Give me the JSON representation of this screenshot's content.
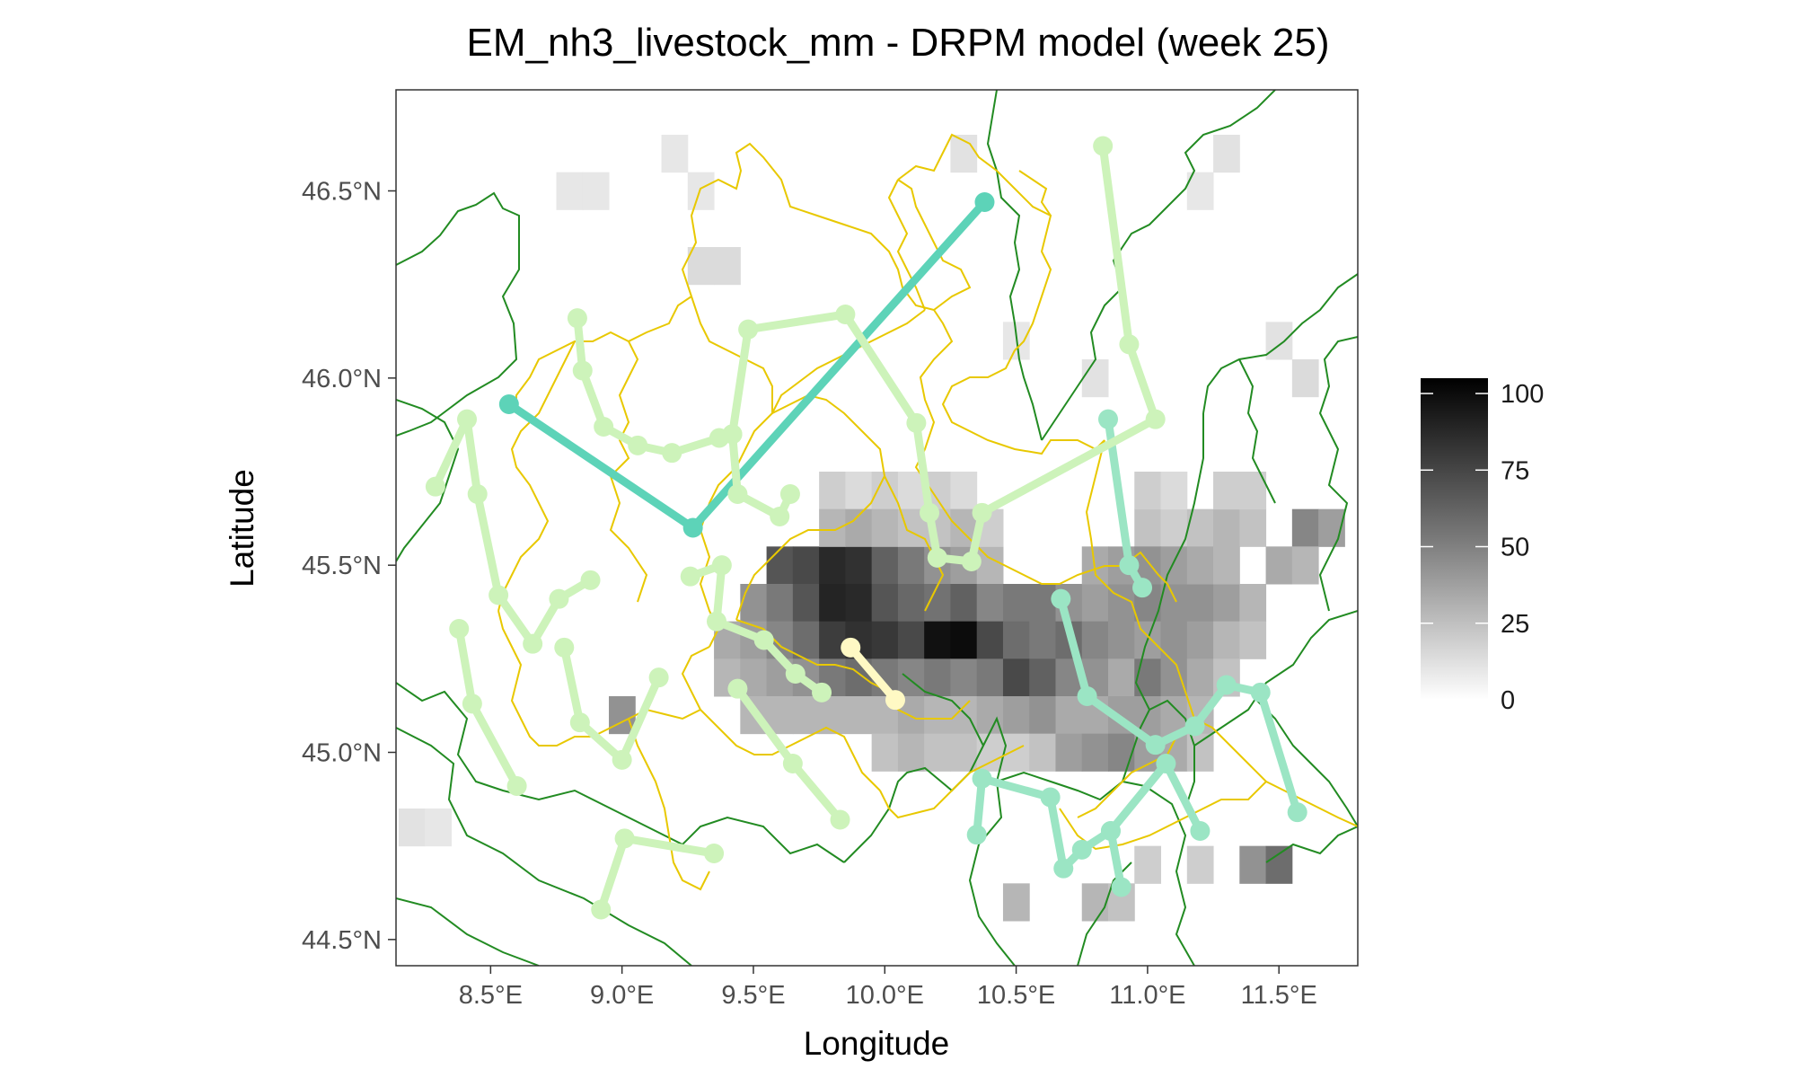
{
  "chart_data": {
    "type": "heatmap",
    "title": "EM_nh3_livestock_mm - DRPM model (week 25)",
    "xlabel": "Longitude",
    "ylabel": "Latitude",
    "xlim": [
      8.14,
      11.8
    ],
    "ylim": [
      44.43,
      46.77
    ],
    "x_ticks": [
      {
        "value": 8.5,
        "label": "8.5°E"
      },
      {
        "value": 9.0,
        "label": "9.0°E"
      },
      {
        "value": 9.5,
        "label": "9.5°E"
      },
      {
        "value": 10.0,
        "label": "10.0°E"
      },
      {
        "value": 10.5,
        "label": "10.5°E"
      },
      {
        "value": 11.0,
        "label": "11.0°E"
      },
      {
        "value": 11.5,
        "label": "11.5°E"
      }
    ],
    "y_ticks": [
      {
        "value": 44.5,
        "label": "44.5°N"
      },
      {
        "value": 45.0,
        "label": "45.0°N"
      },
      {
        "value": 45.5,
        "label": "45.5°N"
      },
      {
        "value": 46.0,
        "label": "46.0°N"
      },
      {
        "value": 46.5,
        "label": "46.5°N"
      }
    ],
    "colorbar": {
      "min": 0,
      "max": 105,
      "low_color": "#ffffff",
      "high_color": "#000000",
      "ticks": [
        {
          "value": 0,
          "label": "0"
        },
        {
          "value": 25,
          "label": "25"
        },
        {
          "value": 50,
          "label": "50"
        },
        {
          "value": 75,
          "label": "75"
        },
        {
          "value": 100,
          "label": "100"
        }
      ]
    },
    "grid": false,
    "legend_position": "right",
    "grid_cell": {
      "dlon": 0.1,
      "dlat": 0.1
    },
    "grid_cells": [
      [
        9.6,
        45.5,
        70
      ],
      [
        9.7,
        45.5,
        75
      ],
      [
        9.8,
        45.5,
        88
      ],
      [
        9.9,
        45.5,
        85
      ],
      [
        10.0,
        45.5,
        65
      ],
      [
        10.1,
        45.5,
        55
      ],
      [
        10.2,
        45.5,
        45
      ],
      [
        10.3,
        45.5,
        40
      ],
      [
        10.4,
        45.5,
        30
      ],
      [
        9.5,
        45.4,
        45
      ],
      [
        9.6,
        45.4,
        55
      ],
      [
        9.7,
        45.4,
        70
      ],
      [
        9.8,
        45.4,
        90
      ],
      [
        9.9,
        45.4,
        88
      ],
      [
        10.0,
        45.4,
        70
      ],
      [
        10.1,
        45.4,
        62
      ],
      [
        10.2,
        45.4,
        58
      ],
      [
        10.3,
        45.4,
        65
      ],
      [
        10.4,
        45.4,
        50
      ],
      [
        10.5,
        45.4,
        55
      ],
      [
        10.6,
        45.4,
        55
      ],
      [
        10.7,
        45.4,
        45
      ],
      [
        10.8,
        45.4,
        40
      ],
      [
        10.9,
        45.4,
        45
      ],
      [
        11.0,
        45.4,
        50
      ],
      [
        11.1,
        45.4,
        45
      ],
      [
        11.2,
        45.4,
        45
      ],
      [
        11.3,
        45.4,
        40
      ],
      [
        11.4,
        45.4,
        30
      ],
      [
        9.4,
        45.3,
        35
      ],
      [
        9.5,
        45.3,
        40
      ],
      [
        9.6,
        45.3,
        50
      ],
      [
        9.7,
        45.3,
        60
      ],
      [
        9.8,
        45.3,
        80
      ],
      [
        9.9,
        45.3,
        85
      ],
      [
        10.0,
        45.3,
        82
      ],
      [
        10.1,
        45.3,
        75
      ],
      [
        10.2,
        45.3,
        98
      ],
      [
        10.3,
        45.3,
        100
      ],
      [
        10.4,
        45.3,
        75
      ],
      [
        10.5,
        45.3,
        60
      ],
      [
        10.6,
        45.3,
        55
      ],
      [
        10.7,
        45.3,
        60
      ],
      [
        10.8,
        45.3,
        50
      ],
      [
        10.9,
        45.3,
        45
      ],
      [
        11.0,
        45.3,
        40
      ],
      [
        11.1,
        45.3,
        45
      ],
      [
        11.2,
        45.3,
        40
      ],
      [
        11.3,
        45.3,
        30
      ],
      [
        11.4,
        45.3,
        25
      ],
      [
        9.4,
        45.2,
        30
      ],
      [
        9.5,
        45.2,
        35
      ],
      [
        9.6,
        45.2,
        40
      ],
      [
        9.7,
        45.2,
        45
      ],
      [
        9.8,
        45.2,
        55
      ],
      [
        9.9,
        45.2,
        60
      ],
      [
        10.0,
        45.2,
        55
      ],
      [
        10.1,
        45.2,
        50
      ],
      [
        10.2,
        45.2,
        55
      ],
      [
        10.3,
        45.2,
        50
      ],
      [
        10.4,
        45.2,
        55
      ],
      [
        10.5,
        45.2,
        75
      ],
      [
        10.6,
        45.2,
        65
      ],
      [
        10.7,
        45.2,
        50
      ],
      [
        10.8,
        45.2,
        45
      ],
      [
        10.9,
        45.2,
        35
      ],
      [
        11.0,
        45.2,
        55
      ],
      [
        11.1,
        45.2,
        45
      ],
      [
        11.2,
        45.2,
        35
      ],
      [
        11.3,
        45.2,
        25
      ],
      [
        9.0,
        45.1,
        45
      ],
      [
        9.5,
        45.1,
        30
      ],
      [
        9.6,
        45.1,
        30
      ],
      [
        9.7,
        45.1,
        30
      ],
      [
        9.8,
        45.1,
        30
      ],
      [
        9.9,
        45.1,
        30
      ],
      [
        10.0,
        45.1,
        30
      ],
      [
        10.1,
        45.1,
        35
      ],
      [
        10.2,
        45.1,
        30
      ],
      [
        10.3,
        45.1,
        30
      ],
      [
        10.4,
        45.1,
        35
      ],
      [
        10.5,
        45.1,
        40
      ],
      [
        10.6,
        45.1,
        45
      ],
      [
        10.7,
        45.1,
        35
      ],
      [
        10.8,
        45.1,
        35
      ],
      [
        10.9,
        45.1,
        40
      ],
      [
        11.0,
        45.1,
        40
      ],
      [
        11.1,
        45.1,
        35
      ],
      [
        11.2,
        45.1,
        30
      ],
      [
        10.0,
        45.0,
        25
      ],
      [
        10.1,
        45.0,
        30
      ],
      [
        10.2,
        45.0,
        25
      ],
      [
        10.3,
        45.0,
        25
      ],
      [
        10.4,
        45.0,
        20
      ],
      [
        10.5,
        45.0,
        20
      ],
      [
        10.6,
        45.0,
        25
      ],
      [
        10.7,
        45.0,
        40
      ],
      [
        10.8,
        45.0,
        45
      ],
      [
        10.9,
        45.0,
        50
      ],
      [
        11.0,
        45.0,
        40
      ],
      [
        11.1,
        45.0,
        35
      ],
      [
        11.2,
        45.0,
        25
      ],
      [
        9.8,
        45.7,
        20
      ],
      [
        9.9,
        45.7,
        15
      ],
      [
        10.0,
        45.7,
        20
      ],
      [
        10.1,
        45.7,
        15
      ],
      [
        10.2,
        45.7,
        20
      ],
      [
        10.3,
        45.7,
        15
      ],
      [
        9.8,
        45.6,
        30
      ],
      [
        9.9,
        45.6,
        35
      ],
      [
        10.0,
        45.6,
        30
      ],
      [
        10.1,
        45.6,
        25
      ],
      [
        10.2,
        45.6,
        25
      ],
      [
        10.3,
        45.6,
        30
      ],
      [
        10.4,
        45.6,
        20
      ],
      [
        11.0,
        45.6,
        25
      ],
      [
        11.1,
        45.6,
        20
      ],
      [
        11.2,
        45.6,
        25
      ],
      [
        11.3,
        45.6,
        30
      ],
      [
        11.4,
        45.6,
        25
      ],
      [
        11.6,
        45.6,
        50
      ],
      [
        11.7,
        45.6,
        40
      ],
      [
        10.8,
        45.5,
        35
      ],
      [
        10.9,
        45.5,
        40
      ],
      [
        11.0,
        45.5,
        45
      ],
      [
        11.1,
        45.5,
        40
      ],
      [
        11.2,
        45.5,
        35
      ],
      [
        11.3,
        45.5,
        30
      ],
      [
        11.5,
        45.5,
        35
      ],
      [
        11.6,
        45.5,
        30
      ],
      [
        11.0,
        45.7,
        20
      ],
      [
        11.1,
        45.7,
        15
      ],
      [
        11.3,
        45.7,
        20
      ],
      [
        11.4,
        45.7,
        20
      ],
      [
        10.5,
        44.6,
        30
      ],
      [
        10.8,
        44.6,
        30
      ],
      [
        10.9,
        44.6,
        25
      ],
      [
        11.4,
        44.7,
        45
      ],
      [
        11.5,
        44.7,
        60
      ],
      [
        11.0,
        44.7,
        20
      ],
      [
        11.2,
        44.7,
        20
      ],
      [
        9.3,
        46.3,
        15
      ],
      [
        9.4,
        46.3,
        15
      ],
      [
        9.2,
        46.6,
        10
      ],
      [
        9.3,
        46.5,
        10
      ],
      [
        8.8,
        46.5,
        10
      ],
      [
        8.9,
        46.5,
        10
      ],
      [
        10.3,
        46.6,
        12
      ],
      [
        10.5,
        46.1,
        10
      ],
      [
        10.8,
        46.0,
        12
      ],
      [
        11.6,
        46.0,
        15
      ],
      [
        11.5,
        46.1,
        12
      ],
      [
        11.3,
        46.6,
        12
      ],
      [
        11.2,
        46.5,
        10
      ],
      [
        8.2,
        44.8,
        12
      ],
      [
        8.3,
        44.8,
        10
      ]
    ],
    "boundaries_outer_color": "#228b22",
    "boundaries_inner_color": "#e8c800",
    "station_series": [
      {
        "color": "#5dd3b8",
        "points": [
          [
            8.57,
            45.93
          ],
          [
            9.27,
            45.6
          ],
          [
            10.38,
            46.47
          ]
        ]
      },
      {
        "color": "#9be5c4",
        "points": [
          [
            10.85,
            45.89
          ],
          [
            10.93,
            45.5
          ],
          [
            10.98,
            45.44
          ]
        ]
      },
      {
        "color": "#9be5c4",
        "points": [
          [
            10.67,
            45.41
          ],
          [
            10.77,
            45.15
          ],
          [
            11.03,
            45.02
          ],
          [
            11.18,
            45.07
          ],
          [
            11.3,
            45.18
          ],
          [
            11.43,
            45.16
          ],
          [
            11.57,
            44.84
          ]
        ]
      },
      {
        "color": "#9be5c4",
        "points": [
          [
            10.35,
            44.78
          ],
          [
            10.37,
            44.93
          ],
          [
            10.63,
            44.88
          ],
          [
            10.68,
            44.69
          ],
          [
            10.75,
            44.74
          ],
          [
            10.86,
            44.79
          ],
          [
            10.9,
            44.64
          ]
        ]
      },
      {
        "color": "#9be5c4",
        "points": [
          [
            10.86,
            44.79
          ],
          [
            11.07,
            44.97
          ],
          [
            11.2,
            44.79
          ]
        ]
      },
      {
        "color": "#cdf3ba",
        "points": [
          [
            10.83,
            46.62
          ],
          [
            10.93,
            46.09
          ],
          [
            11.03,
            45.89
          ],
          [
            10.37,
            45.64
          ],
          [
            10.33,
            45.51
          ],
          [
            10.2,
            45.52
          ],
          [
            10.17,
            45.64
          ],
          [
            10.12,
            45.88
          ],
          [
            9.85,
            46.17
          ],
          [
            9.48,
            46.13
          ],
          [
            9.42,
            45.85
          ]
        ]
      },
      {
        "color": "#cdf3ba",
        "points": [
          [
            8.83,
            46.16
          ],
          [
            8.85,
            46.02
          ],
          [
            8.93,
            45.87
          ],
          [
            9.06,
            45.82
          ],
          [
            9.19,
            45.8
          ],
          [
            9.37,
            45.84
          ],
          [
            9.42,
            45.85
          ],
          [
            9.44,
            45.69
          ],
          [
            9.6,
            45.63
          ],
          [
            9.64,
            45.69
          ]
        ]
      },
      {
        "color": "#cdf3ba",
        "points": [
          [
            9.26,
            45.47
          ],
          [
            9.38,
            45.5
          ],
          [
            9.36,
            45.35
          ],
          [
            9.54,
            45.3
          ],
          [
            9.66,
            45.21
          ],
          [
            9.76,
            45.16
          ]
        ]
      },
      {
        "color": "#cdf3ba",
        "points": [
          [
            8.29,
            45.71
          ],
          [
            8.41,
            45.89
          ],
          [
            8.45,
            45.69
          ],
          [
            8.53,
            45.42
          ],
          [
            8.66,
            45.29
          ],
          [
            8.76,
            45.41
          ],
          [
            8.88,
            45.46
          ]
        ]
      },
      {
        "color": "#cdf3ba",
        "points": [
          [
            8.38,
            45.33
          ],
          [
            8.43,
            45.13
          ],
          [
            8.6,
            44.91
          ]
        ]
      },
      {
        "color": "#cdf3ba",
        "points": [
          [
            8.78,
            45.28
          ],
          [
            8.84,
            45.08
          ],
          [
            9.0,
            44.98
          ],
          [
            9.14,
            45.2
          ]
        ]
      },
      {
        "color": "#cdf3ba",
        "points": [
          [
            8.92,
            44.58
          ],
          [
            9.01,
            44.77
          ],
          [
            9.35,
            44.73
          ]
        ]
      },
      {
        "color": "#cdf3ba",
        "points": [
          [
            9.44,
            45.17
          ],
          [
            9.65,
            44.97
          ],
          [
            9.83,
            44.82
          ]
        ]
      },
      {
        "color": "#fff9c4",
        "points": [
          [
            9.87,
            45.28
          ],
          [
            10.04,
            45.14
          ]
        ]
      }
    ]
  }
}
